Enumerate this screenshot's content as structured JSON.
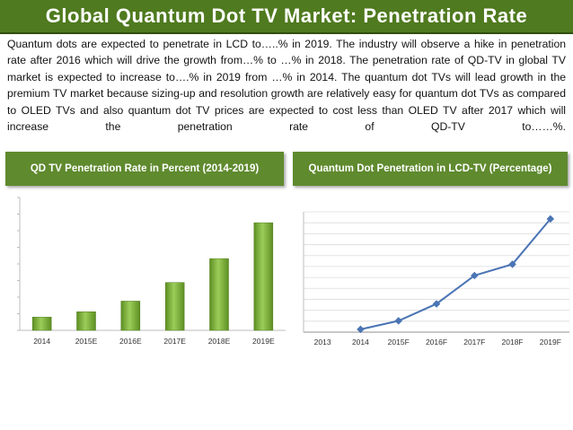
{
  "title": "Global Quantum Dot TV Market: Penetration Rate",
  "paragraph": "Quantum dots are expected to penetrate in LCD to…..% in 2019.  The industry will observe a hike in penetration rate after 2016 which will drive the growth from…% to …% in 2018. The penetration rate of QD-TV in global TV market is expected to increase to….% in 2019 from …% in 2014. The quantum dot TVs will lead growth in the premium TV market because sizing-up and resolution growth are relatively easy for quantum dot TVs as compared to OLED TVs and also quantum dot TV prices are expected to cost less than OLED TV after 2017 which will increase the penetration rate of QD-TV to……%.",
  "colors": {
    "title_bg": "#4f7a1f",
    "panel_bg": "#5f8a2e",
    "bar": "#7fb03a",
    "line": "#4a74b4"
  },
  "chart_data": [
    {
      "type": "bar",
      "title": "QD TV Penetration Rate in Percent (2014-2019)",
      "categories": [
        "2014",
        "2015E",
        "2016E",
        "2017E",
        "2018E",
        "2019E"
      ],
      "values": [
        1.0,
        1.4,
        2.2,
        3.6,
        5.4,
        8.1
      ],
      "ylim": [
        0,
        10
      ],
      "grid": false
    },
    {
      "type": "line",
      "title": "Quantum Dot Penetration in LCD-TV (Percentage)",
      "categories": [
        "2013",
        "2014",
        "2015F",
        "2016F",
        "2017F",
        "2018F",
        "2019F"
      ],
      "values": [
        null,
        2,
        8,
        20,
        40,
        48,
        80
      ],
      "ylim": [
        0,
        85
      ],
      "grid": true
    }
  ]
}
